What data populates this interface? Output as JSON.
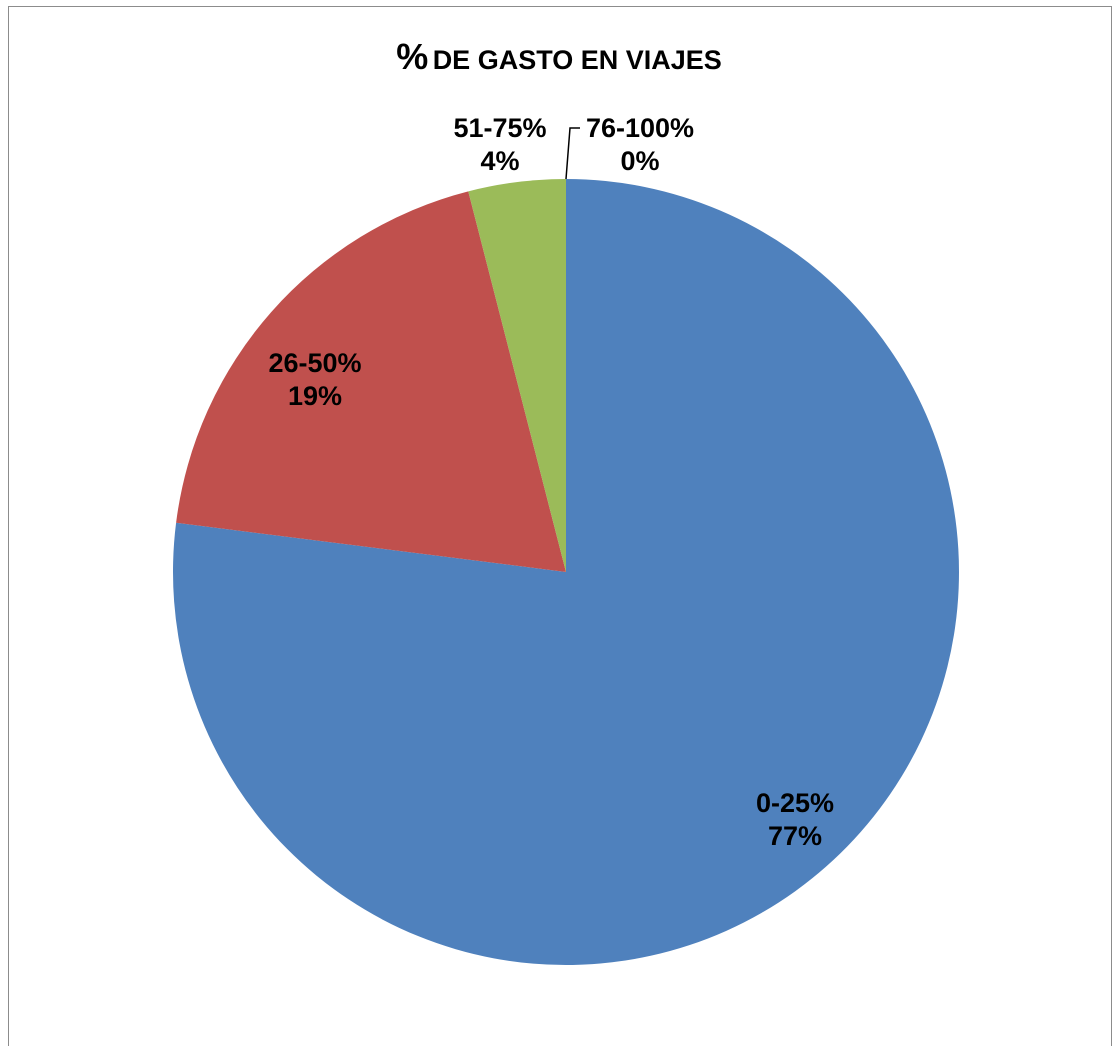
{
  "chart_data": {
    "type": "pie",
    "title_symbol": "%",
    "title_text": "DE GASTO EN VIAJES",
    "slices": [
      {
        "label": "0-25%",
        "value": 77,
        "percent_label": "77%",
        "color": "#4F81BD"
      },
      {
        "label": "26-50%",
        "value": 19,
        "percent_label": "19%",
        "color": "#C0504D"
      },
      {
        "label": "51-75%",
        "value": 4,
        "percent_label": "4%",
        "color": "#9BBB59"
      },
      {
        "label": "76-100%",
        "value": 0,
        "percent_label": "0%",
        "color": "#8064A2"
      }
    ],
    "legend": "none",
    "data_labels": "category and percentage"
  }
}
